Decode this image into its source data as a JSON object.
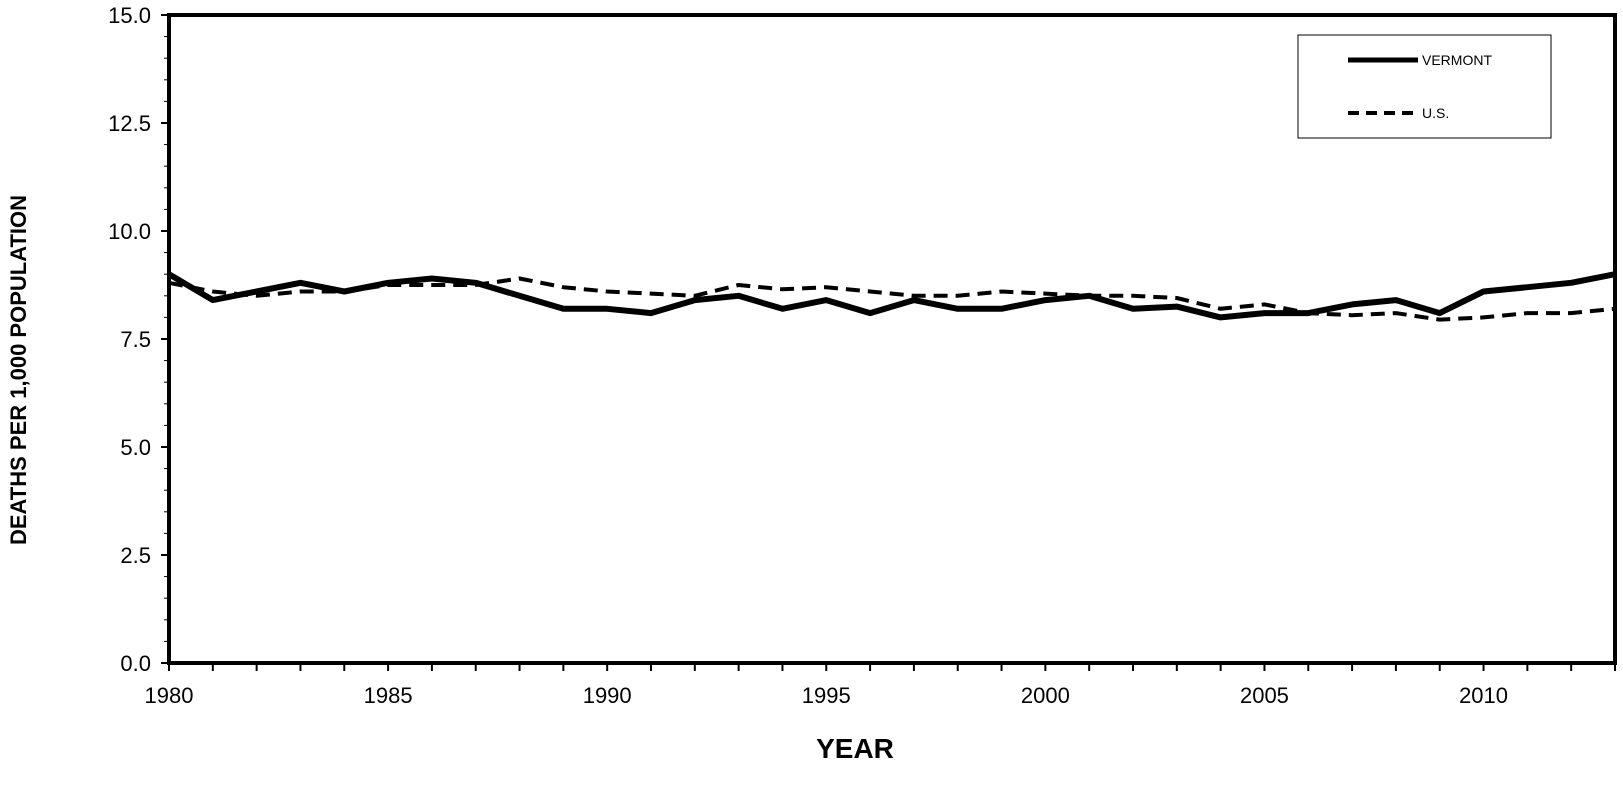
{
  "chart_data": {
    "type": "line",
    "title": "",
    "xlabel": "YEAR",
    "ylabel": "DEATHS PER 1,000 POPULATION",
    "xlim": [
      1980,
      2013
    ],
    "ylim": [
      0,
      15
    ],
    "x_ticks": [
      "1980",
      "1985",
      "1990",
      "1995",
      "2000",
      "2005",
      "2010"
    ],
    "y_ticks": [
      "0.0",
      "2.5",
      "5.0",
      "7.5",
      "10.0",
      "12.5",
      "15.0"
    ],
    "grid": false,
    "legend_position": "top-right",
    "x": [
      1980,
      1981,
      1982,
      1983,
      1984,
      1985,
      1986,
      1987,
      1988,
      1989,
      1990,
      1991,
      1992,
      1993,
      1994,
      1995,
      1996,
      1997,
      1998,
      1999,
      2000,
      2001,
      2002,
      2003,
      2004,
      2005,
      2006,
      2007,
      2008,
      2009,
      2010,
      2011,
      2012,
      2013
    ],
    "series": [
      {
        "name": "VERMONT",
        "style": "solid",
        "values": [
          9.0,
          8.4,
          8.6,
          8.8,
          8.6,
          8.8,
          8.9,
          8.8,
          8.5,
          8.2,
          8.2,
          8.1,
          8.4,
          8.5,
          8.2,
          8.4,
          8.1,
          8.4,
          8.2,
          8.2,
          8.4,
          8.5,
          8.2,
          8.25,
          8.0,
          8.1,
          8.1,
          8.3,
          8.4,
          8.1,
          8.6,
          8.7,
          8.8,
          9.0
        ]
      },
      {
        "name": "U.S.",
        "style": "dashed",
        "values": [
          8.8,
          8.6,
          8.5,
          8.6,
          8.6,
          8.75,
          8.75,
          8.75,
          8.9,
          8.7,
          8.6,
          8.55,
          8.5,
          8.75,
          8.65,
          8.7,
          8.6,
          8.5,
          8.5,
          8.6,
          8.55,
          8.5,
          8.5,
          8.45,
          8.2,
          8.3,
          8.1,
          8.05,
          8.1,
          7.95,
          8.0,
          8.1,
          8.1,
          8.2
        ]
      }
    ]
  },
  "colors": {
    "line": "#000000",
    "background": "#ffffff"
  }
}
